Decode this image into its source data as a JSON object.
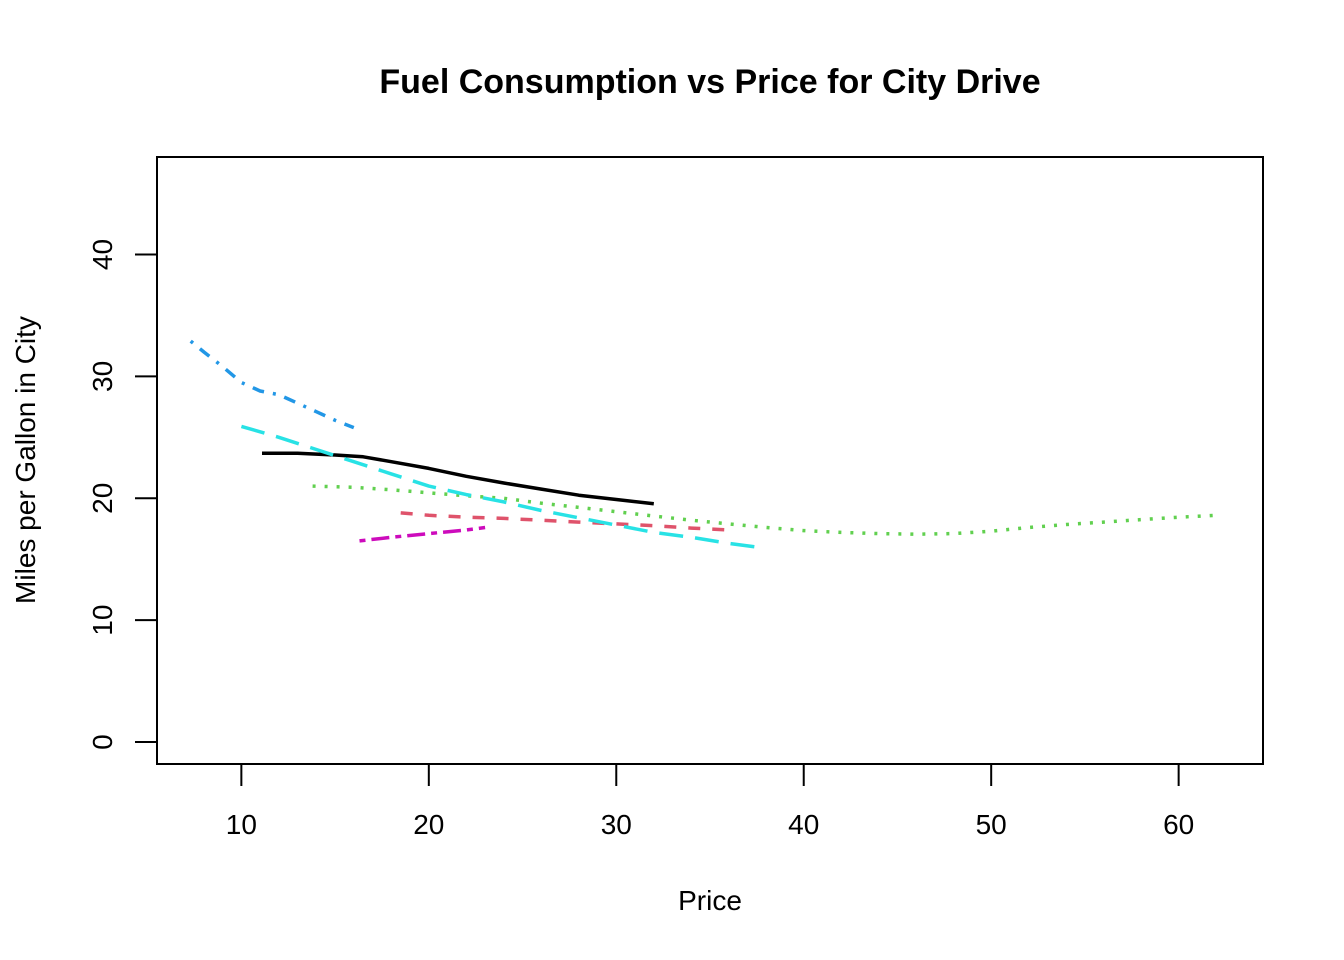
{
  "chart_data": {
    "type": "line",
    "title": "Fuel Consumption vs Price for City Drive",
    "xlabel": "Price",
    "ylabel": "Miles per Gallon in City",
    "xlim": [
      5.5,
      64.5
    ],
    "ylim": [
      -1.8,
      48
    ],
    "xticks": [
      10,
      20,
      30,
      40,
      50,
      60
    ],
    "yticks": [
      0,
      10,
      20,
      30,
      40
    ],
    "grid": false,
    "series": [
      {
        "name": "solid-black",
        "color": "#000000",
        "dash": "solid",
        "x": [
          11.1,
          13,
          15,
          16.5,
          18,
          20,
          22,
          24,
          26,
          28,
          30,
          32
        ],
        "y": [
          23.7,
          23.7,
          23.55,
          23.4,
          23.0,
          22.45,
          21.8,
          21.25,
          20.75,
          20.25,
          19.9,
          19.55
        ]
      },
      {
        "name": "dashed-red",
        "color": "#DF536B",
        "dash": "dashed",
        "x": [
          18.5,
          20,
          22,
          24,
          26,
          28,
          30,
          32,
          34,
          36
        ],
        "y": [
          18.8,
          18.6,
          18.45,
          18.35,
          18.2,
          18.05,
          17.9,
          17.75,
          17.55,
          17.4
        ]
      },
      {
        "name": "dotted-green",
        "color": "#61D04F",
        "dash": "dotted",
        "x": [
          13.8,
          16,
          18,
          20,
          22,
          24,
          26,
          28,
          30,
          32,
          34,
          36,
          38,
          40,
          42,
          44,
          46,
          48,
          50,
          52,
          54,
          56,
          58,
          60,
          62
        ],
        "y": [
          21.0,
          20.9,
          20.7,
          20.45,
          20.2,
          20.0,
          19.6,
          19.25,
          18.9,
          18.55,
          18.2,
          17.9,
          17.6,
          17.35,
          17.2,
          17.1,
          17.05,
          17.1,
          17.3,
          17.6,
          17.85,
          18.05,
          18.25,
          18.45,
          18.6
        ]
      },
      {
        "name": "dotdash-blue",
        "color": "#2297E6",
        "dash": "dotdash",
        "x": [
          7.3,
          8,
          9,
          10,
          11,
          12,
          13,
          14,
          15,
          16
        ],
        "y": [
          32.9,
          32.0,
          30.8,
          29.5,
          28.8,
          28.5,
          27.8,
          27.1,
          26.4,
          25.8
        ]
      },
      {
        "name": "longdash-cyan",
        "color": "#28E2E5",
        "dash": "longdash",
        "x": [
          10,
          12,
          14,
          16,
          18,
          20,
          22,
          24,
          26,
          28,
          30,
          32,
          34,
          36,
          38
        ],
        "y": [
          25.9,
          25.0,
          24.0,
          23.0,
          22.0,
          21.0,
          20.3,
          19.7,
          19.0,
          18.4,
          17.8,
          17.2,
          16.8,
          16.3,
          15.9
        ]
      },
      {
        "name": "twodash-magenta",
        "color": "#CD0BBC",
        "dash": "twodash",
        "x": [
          16.3,
          18,
          20,
          22,
          23
        ],
        "y": [
          16.5,
          16.8,
          17.1,
          17.4,
          17.6
        ]
      }
    ]
  }
}
